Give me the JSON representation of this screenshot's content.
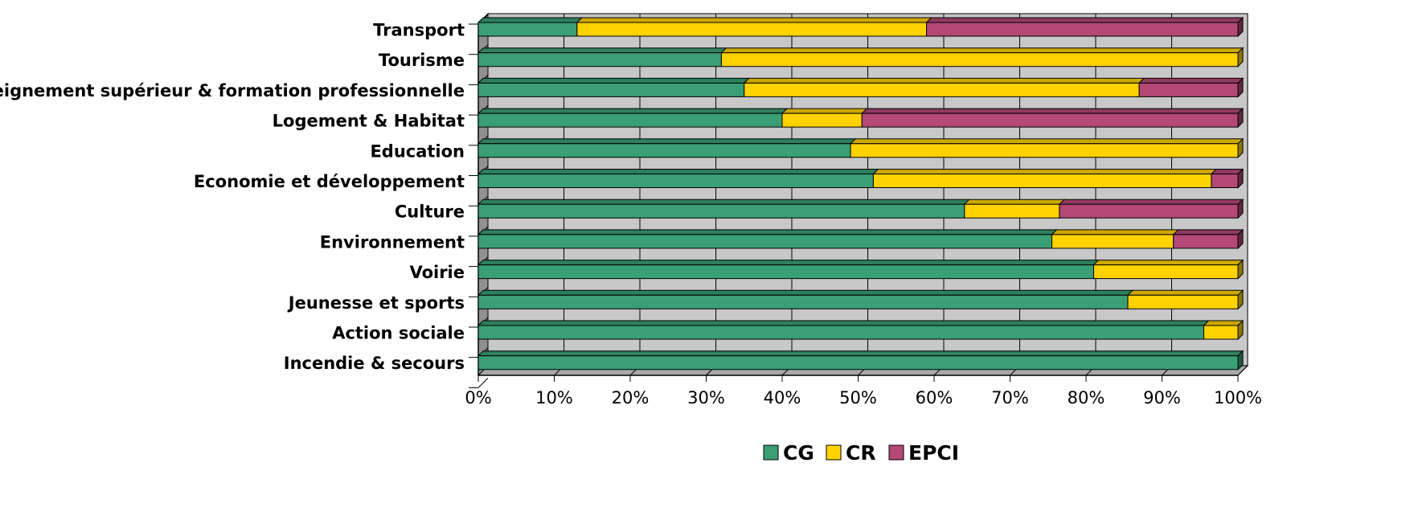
{
  "chart_data": {
    "type": "bar",
    "orientation": "horizontal",
    "stacked": "percent",
    "three_d": true,
    "grid": true,
    "legend_position": "bottom",
    "title": "",
    "xlabel": "",
    "ylabel": "",
    "xlim": [
      0,
      100
    ],
    "x_ticks": [
      "0%",
      "10%",
      "20%",
      "30%",
      "40%",
      "50%",
      "60%",
      "70%",
      "80%",
      "90%",
      "100%"
    ],
    "categories": [
      "Transport",
      "Tourisme",
      "Enseignement supérieur & formation professionnelle",
      "Logement & Habitat",
      "Education",
      "Economie et développement",
      "Culture",
      "Environnement",
      "Voirie",
      "Jeunesse et sports",
      "Action sociale",
      "Incendie & secours"
    ],
    "series": [
      {
        "name": "CG",
        "color": "#3a9f74",
        "values": [
          13,
          32,
          35,
          40,
          49,
          52,
          64,
          75.5,
          81,
          85.5,
          95.5,
          100
        ]
      },
      {
        "name": "CR",
        "color": "#ffd200",
        "values": [
          46,
          68,
          52,
          10.5,
          51,
          44.5,
          12.5,
          16,
          19,
          14.5,
          4.5,
          0
        ]
      },
      {
        "name": "EPCI",
        "color": "#b44877",
        "values": [
          41,
          0,
          13,
          49.5,
          0,
          3.5,
          23.5,
          8.5,
          0,
          0,
          0,
          0
        ]
      }
    ]
  }
}
